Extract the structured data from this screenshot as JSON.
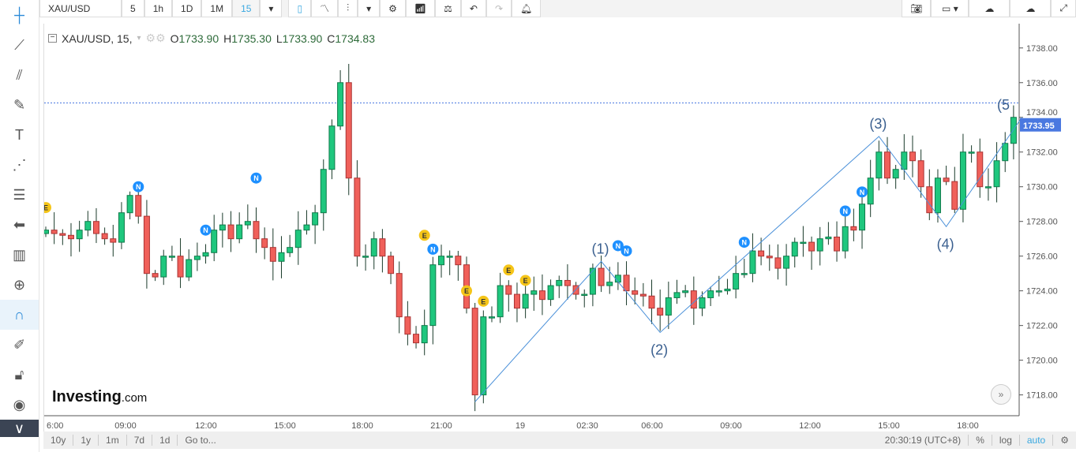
{
  "toolbar": {
    "symbol": "XAU/USD",
    "intervals": [
      "5",
      "1h",
      "1D",
      "1M",
      "15"
    ],
    "active_interval": "15"
  },
  "legend": {
    "title": "XAU/USD, 15,",
    "o_label": "O",
    "o": "1733.90",
    "h_label": "H",
    "h": "1735.30",
    "l_label": "L",
    "l": "1733.90",
    "c_label": "C",
    "c": "1734.83"
  },
  "brand": {
    "name": "Investing",
    "suffix": ".com"
  },
  "bottom": {
    "ranges": [
      "10y",
      "1y",
      "1m",
      "7d",
      "1d",
      "Go to..."
    ],
    "time": "20:30:19 (UTC+8)",
    "percent": "%",
    "log": "log",
    "auto": "auto"
  },
  "colors": {
    "up": "#1fc77e",
    "down": "#f0605a",
    "accent": "#4a78e0",
    "wave": "#4a90d9"
  },
  "chart_data": {
    "type": "candlestick",
    "symbol": "XAU/USD",
    "interval": "15",
    "ylim": [
      1716.8,
      1739.4
    ],
    "yticks": [
      "1738.00",
      "1736.00",
      "1734.00",
      "1732.00",
      "1730.00",
      "1728.00",
      "1726.00",
      "1724.00",
      "1722.00",
      "1720.00",
      "1718.00"
    ],
    "last_price": "1733.95",
    "price_line": 1734.83,
    "xticks": [
      "6:00",
      "09:00",
      "12:00",
      "15:00",
      "18:00",
      "21:00",
      "19",
      "02:30",
      "06:00",
      "09:00",
      "12:00",
      "15:00",
      "18:00"
    ],
    "closes": [
      1727.5,
      1727.3,
      1727.2,
      1727.0,
      1727.5,
      1728,
      1727.3,
      1727,
      1726.8,
      1728.5,
      1729.5,
      1728.3,
      1725,
      1724.8,
      1726,
      1726,
      1724.8,
      1725.8,
      1726.0,
      1726.2,
      1727.5,
      1727.8,
      1727,
      1727.8,
      1728,
      1727,
      1726.5,
      1725.7,
      1726.2,
      1726.5,
      1727.5,
      1727.8,
      1728.5,
      1731,
      1733.5,
      1736,
      1730.5,
      1726,
      1726,
      1727,
      1726,
      1725,
      1722.5,
      1721.5,
      1721,
      1722,
      1725.5,
      1726,
      1726,
      1725.5,
      1723,
      1718,
      1722.5,
      1722.5,
      1724.3,
      1723.8,
      1723,
      1723.8,
      1724,
      1723.5,
      1724.3,
      1724.6,
      1724.3,
      1723.8,
      1723.8,
      1725.3,
      1724.3,
      1724.5,
      1724.9,
      1724.0,
      1723.8,
      1723.7,
      1723,
      1722.6,
      1723.6,
      1723.9,
      1724,
      1723,
      1723.6,
      1724,
      1724,
      1724.1,
      1725,
      1725,
      1726.3,
      1726,
      1725.9,
      1725.3,
      1726,
      1726.8,
      1726.8,
      1726.3,
      1727,
      1727.1,
      1726.3,
      1727.7,
      1727.5,
      1729,
      1730.5,
      1732,
      1730.5,
      1731,
      1732,
      1731.5,
      1730,
      1728.5,
      1730.5,
      1730.3,
      1728.7,
      1732,
      1732,
      1730,
      1730,
      1731.5,
      1732.5,
      1734
    ],
    "wave": [
      {
        "label": "(1)",
        "i": 66,
        "p": 1725.7
      },
      {
        "label": "(2)",
        "i": 73,
        "p": 1721.6
      },
      {
        "label": "(3)",
        "i": 99,
        "p": 1732.9
      },
      {
        "label": "(4)",
        "i": 107,
        "p": 1727.7
      },
      {
        "label": "(5",
        "i": 116,
        "p": 1734.0
      }
    ],
    "wave_start": {
      "i": 51,
      "p": 1717.6
    },
    "events": [
      {
        "t": "E",
        "i": 0,
        "p": 1728.8
      },
      {
        "t": "N",
        "i": 11,
        "p": 1730.0
      },
      {
        "t": "N",
        "i": 19,
        "p": 1727.5
      },
      {
        "t": "N",
        "i": 25,
        "p": 1730.5
      },
      {
        "t": "E",
        "i": 45,
        "p": 1727.2
      },
      {
        "t": "N",
        "i": 46,
        "p": 1726.4
      },
      {
        "t": "E",
        "i": 50,
        "p": 1724.0
      },
      {
        "t": "E",
        "i": 52,
        "p": 1723.4
      },
      {
        "t": "E",
        "i": 55,
        "p": 1725.2
      },
      {
        "t": "E",
        "i": 57,
        "p": 1724.6
      },
      {
        "t": "N",
        "i": 68,
        "p": 1726.6
      },
      {
        "t": "N",
        "i": 69,
        "p": 1726.3
      },
      {
        "t": "N",
        "i": 83,
        "p": 1726.8
      },
      {
        "t": "N",
        "i": 95,
        "p": 1728.6
      },
      {
        "t": "N",
        "i": 97,
        "p": 1729.7
      }
    ]
  }
}
